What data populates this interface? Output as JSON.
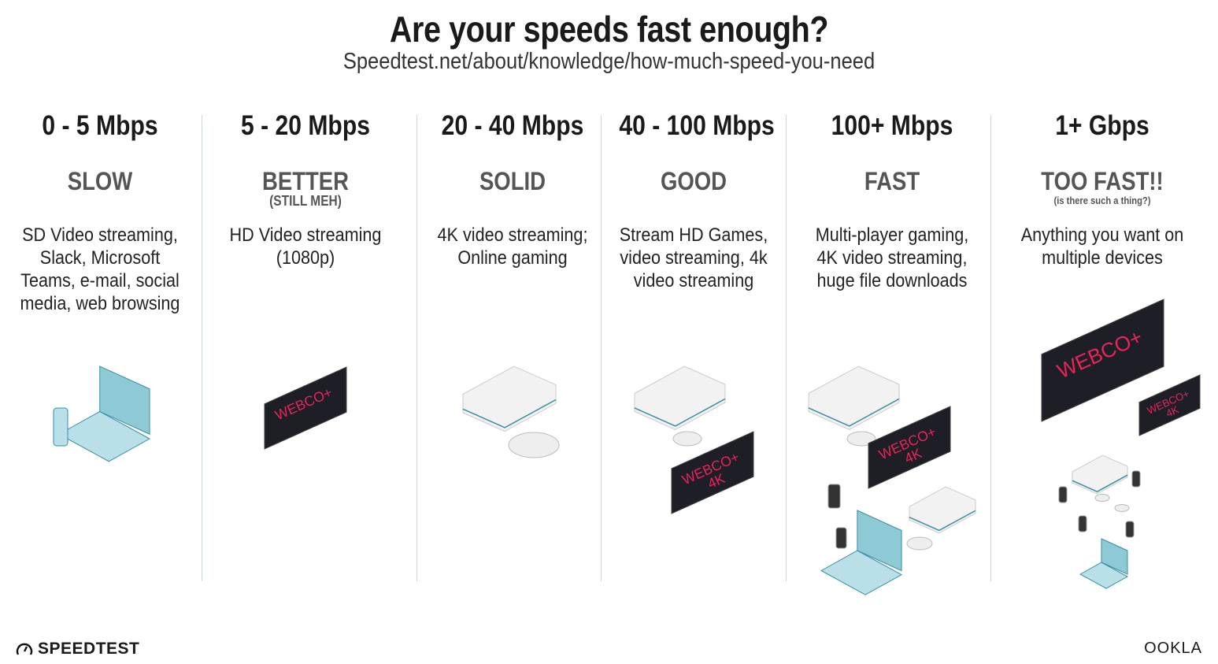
{
  "header": {
    "title": "Are your speeds fast enough?",
    "source": "Speedtest.net/about/knowledge/how-much-speed-you-need"
  },
  "tiers": [
    {
      "speed": "0 - 5 Mbps",
      "label": "SLOW",
      "note": "",
      "desc": "SD Video streaming, Slack, Microsoft Teams, e-mail, social media, web browsing"
    },
    {
      "speed": "5 - 20 Mbps",
      "label": "BETTER",
      "note": "(STILL MEH)",
      "desc": "HD Video streaming (1080p)"
    },
    {
      "speed": "20 - 40 Mbps",
      "label": "SOLID",
      "note": "",
      "desc": "4K video streaming; Online gaming"
    },
    {
      "speed": "40 - 100 Mbps",
      "label": "GOOD",
      "note": "",
      "desc": "Stream HD Games, video streaming, 4k video streaming"
    },
    {
      "speed": "100+ Mbps",
      "label": "FAST",
      "note": "",
      "desc": "Multi-player gaming, 4K video streaming, huge file downloads"
    },
    {
      "speed": "1+ Gbps",
      "label": "TOO FAST!!",
      "note": "(is there such a thing?)",
      "desc": "Anything you want on multiple devices"
    }
  ],
  "tv": {
    "brand": "WEBCO+",
    "res": "4K",
    "accent": "#e8245a"
  },
  "footer": {
    "left_logo": "SPEEDTEST",
    "right_logo": "OOKLA"
  },
  "colors": {
    "divider": "#cfd6d8",
    "device_blue": "#8ec9d6",
    "tv_body": "#1e1e26"
  }
}
